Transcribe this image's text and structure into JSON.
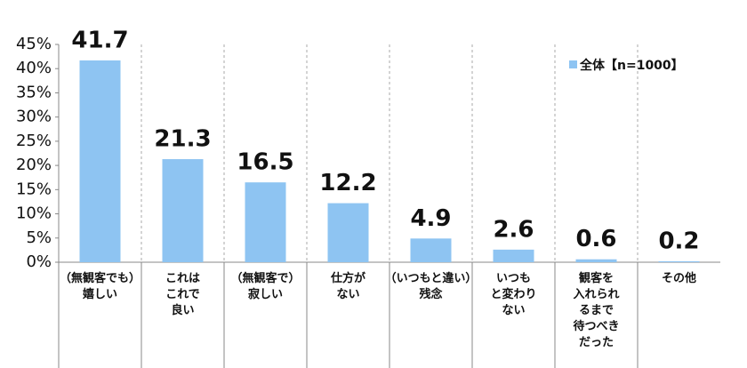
{
  "chart_data": {
    "type": "bar",
    "categories": [
      "（無観客でも）\n嬉しい",
      "これは\nこれで\n良い",
      "（無観客で）\n寂しい",
      "仕方が\nない",
      "（いつもと違い）\n残念",
      "いつも\nと変わり\nない",
      "観客を\n入れられ\nるまで\n待つべき\nだった",
      "その他"
    ],
    "series": [
      {
        "name": "全体【n=1000】",
        "color": "#8ec4f2",
        "values": [
          41.7,
          21.3,
          16.5,
          12.2,
          4.9,
          2.6,
          0.6,
          0.2
        ]
      }
    ],
    "ylim": [
      0,
      45
    ],
    "yticks": [
      {
        "value": 0,
        "label": "0%"
      },
      {
        "value": 5,
        "label": "5%"
      },
      {
        "value": 10,
        "label": "10%"
      },
      {
        "value": 15,
        "label": "15%"
      },
      {
        "value": 20,
        "label": "20%"
      },
      {
        "value": 25,
        "label": "25%"
      },
      {
        "value": 30,
        "label": "30%"
      },
      {
        "value": 35,
        "label": "35%"
      },
      {
        "value": 40,
        "label": "40%"
      },
      {
        "value": 45,
        "label": "45%"
      }
    ],
    "legend": "upper-right"
  }
}
